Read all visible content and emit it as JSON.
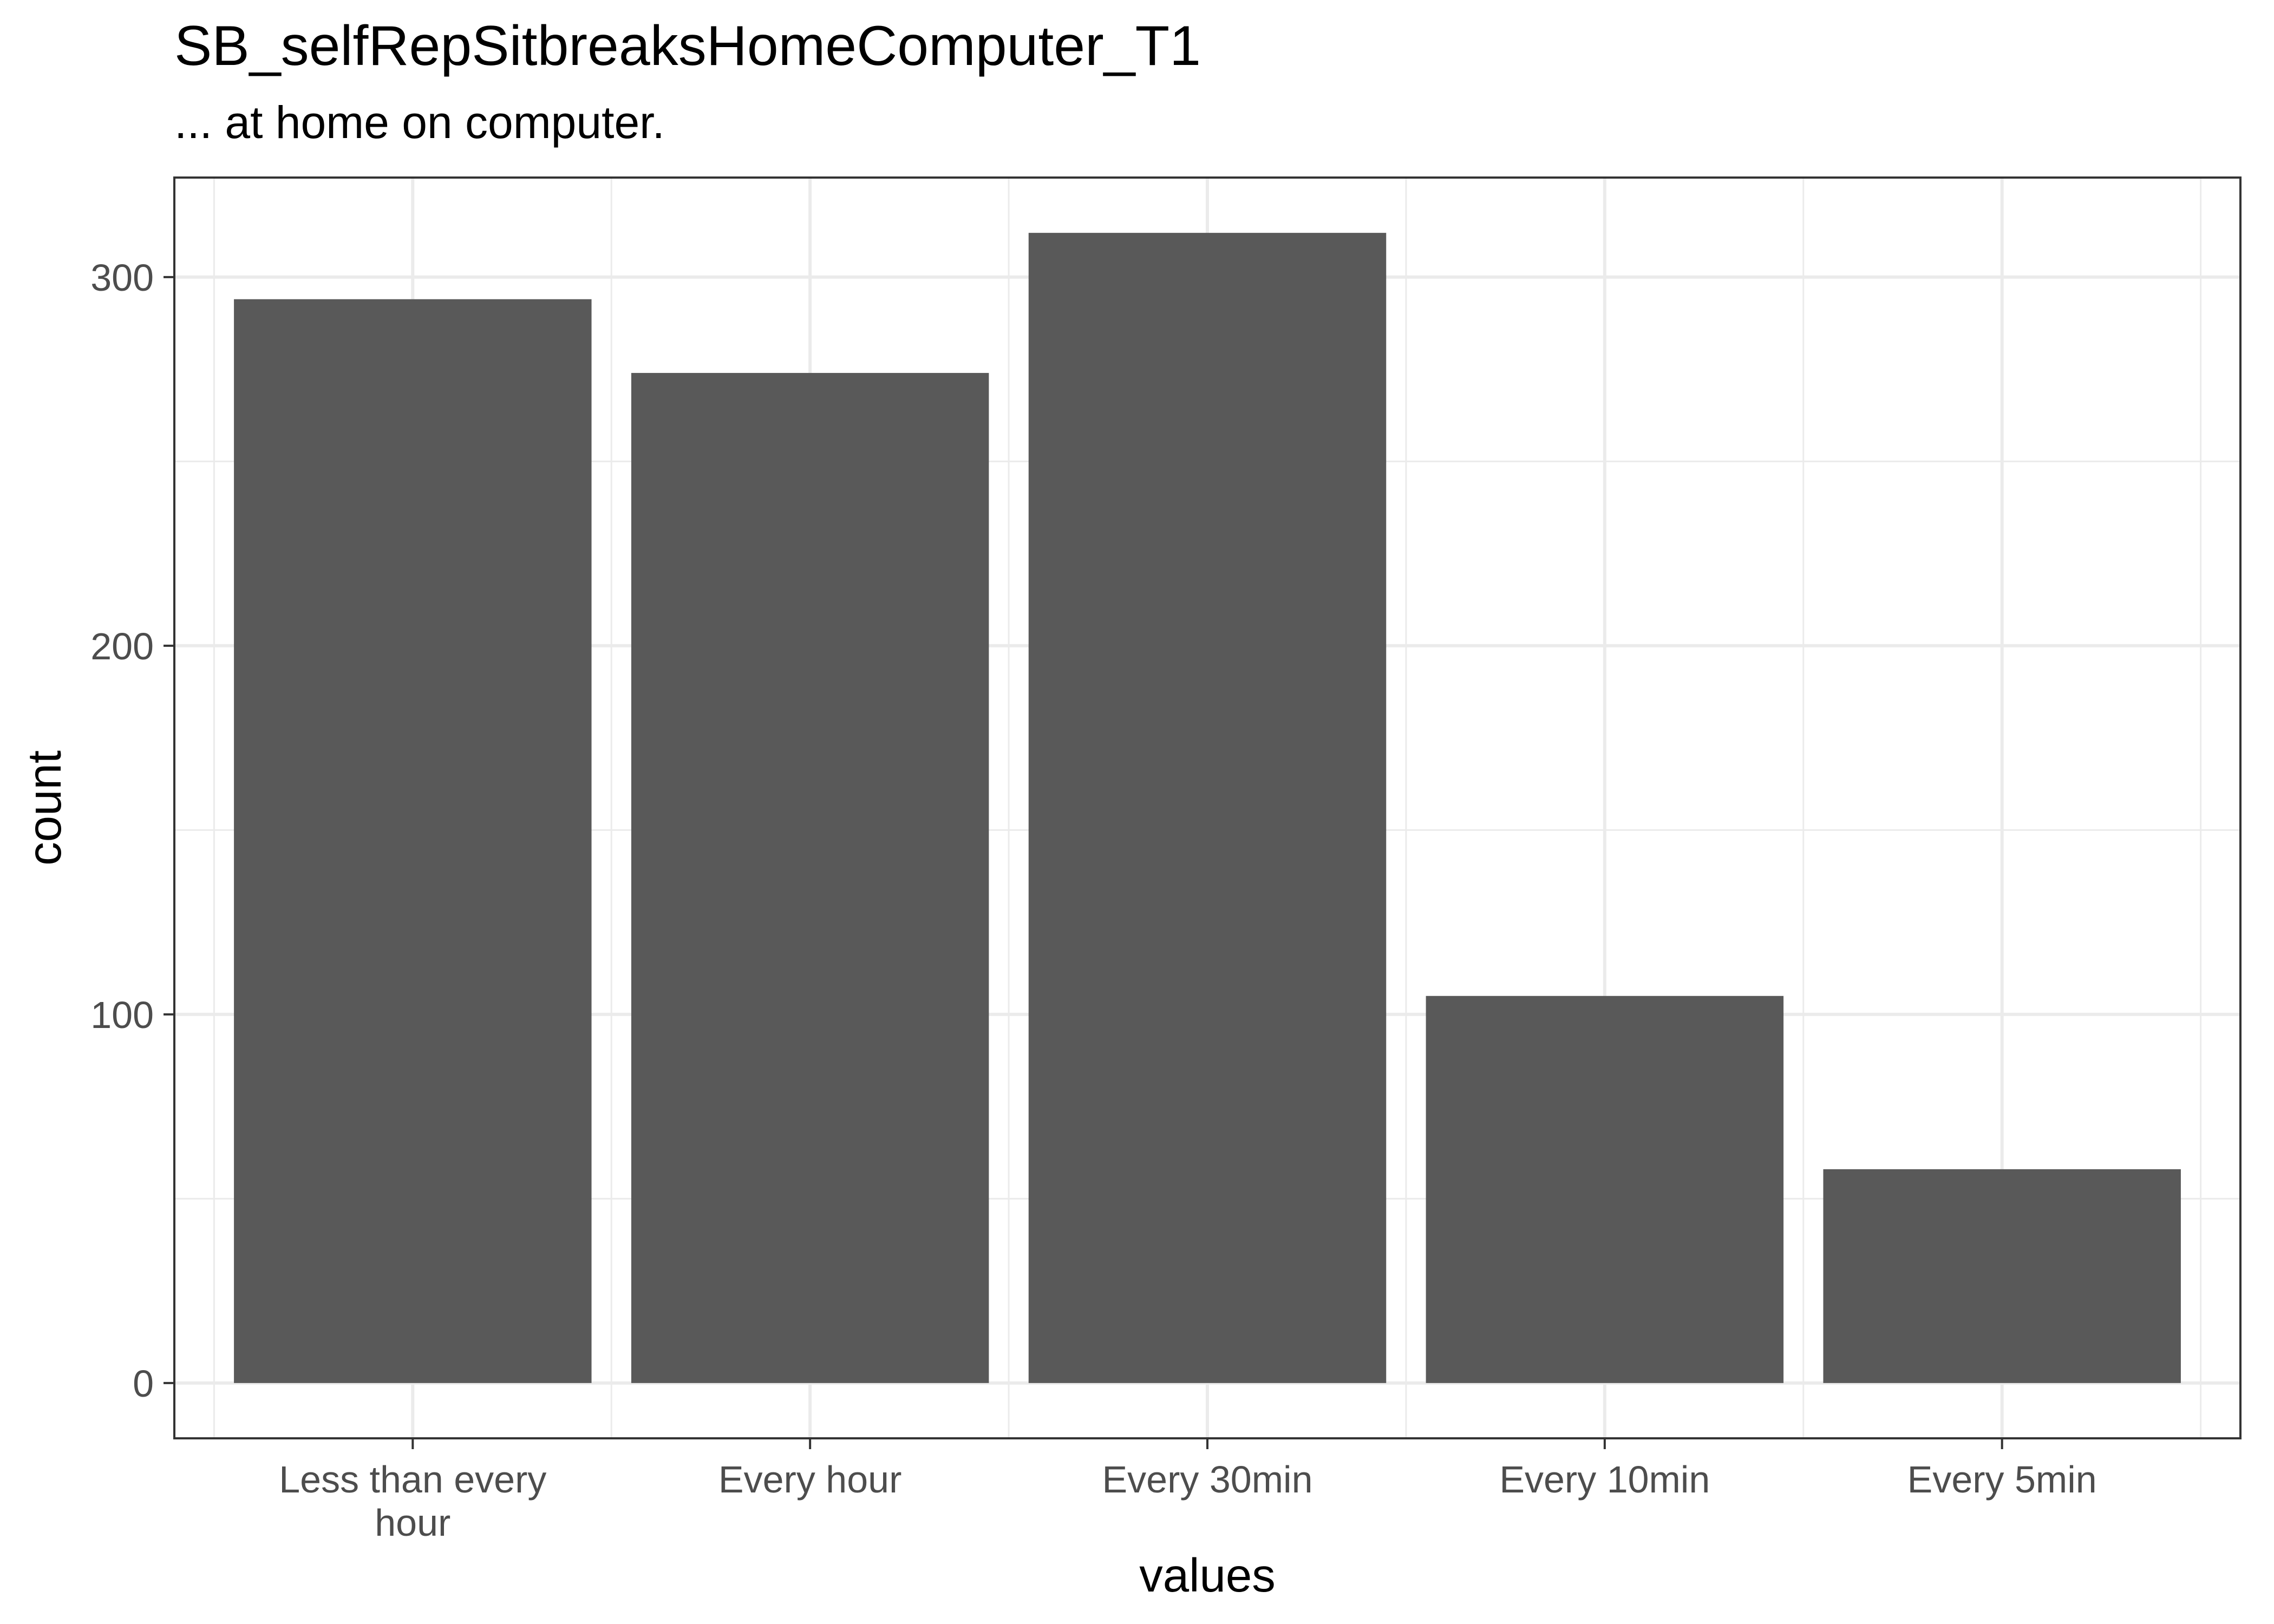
{
  "chart_data": {
    "type": "bar",
    "title": "SB_selfRepSitbreaksHomeComputer_T1",
    "subtitle": "... at home on computer.",
    "xlabel": "values",
    "ylabel": "count",
    "categories": [
      [
        "Less than every",
        "hour"
      ],
      [
        "Every hour"
      ],
      [
        "Every 30min"
      ],
      [
        "Every 10min"
      ],
      [
        "Every 5min"
      ]
    ],
    "values": [
      294,
      274,
      312,
      105,
      58
    ],
    "ylim": [
      -15,
      327
    ],
    "yticks": [
      0,
      100,
      200,
      300
    ],
    "yminor": [
      50,
      150,
      250
    ],
    "grid": true,
    "legend": "none",
    "colors": {
      "bar": "#595959",
      "grid": "#ebebeb",
      "panel_border": "#333333",
      "tick": "#333333",
      "background": "#ffffff"
    }
  }
}
